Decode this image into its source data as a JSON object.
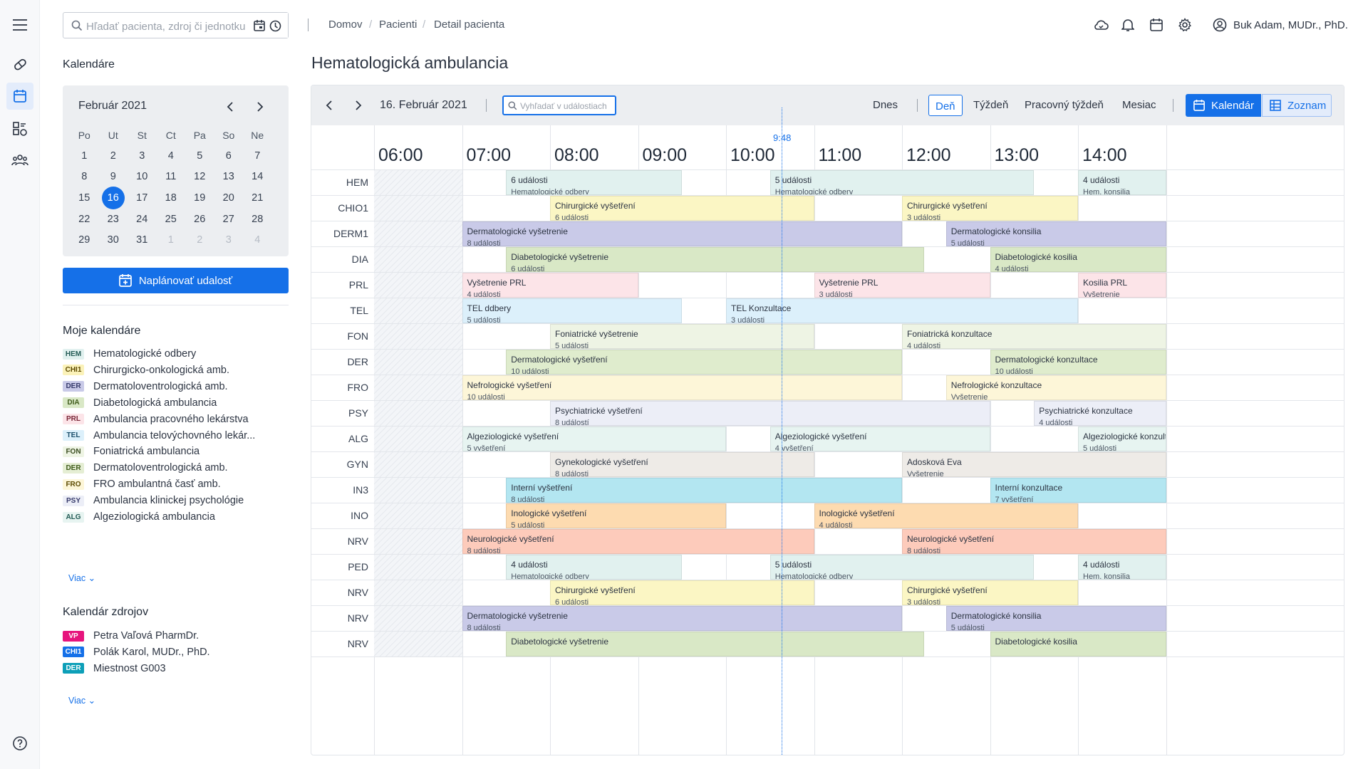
{
  "search": {
    "placeholder": "Hľadať pacienta, zdroj či jednotku"
  },
  "breadcrumb": [
    "Domov",
    "Pacienti",
    "Detail pacienta"
  ],
  "user": {
    "name": "Buk Adam, MUDr., PhD."
  },
  "sidebar": {
    "calendars_heading": "Kalendáre",
    "mini": {
      "month": "Február 2021",
      "dows": [
        "Po",
        "Ut",
        "St",
        "Ct",
        "Pa",
        "So",
        "Ne"
      ],
      "weeks": [
        [
          1,
          2,
          3,
          4,
          5,
          6,
          7
        ],
        [
          8,
          9,
          10,
          11,
          12,
          13,
          14
        ],
        [
          15,
          16,
          17,
          18,
          19,
          20,
          21
        ],
        [
          22,
          23,
          24,
          25,
          26,
          27,
          28
        ],
        [
          29,
          30,
          31,
          1,
          2,
          3,
          4
        ]
      ],
      "selected": 16
    },
    "plan_button": "Naplánovať udalosť",
    "my_heading": "Moje kalendáre",
    "my": [
      {
        "code": "HEM",
        "label": "Hematologické odbery",
        "bg": "#e1f1ef",
        "fg": "#235b55"
      },
      {
        "code": "CHI1",
        "label": "Chirurgicko-onkologická amb.",
        "bg": "#fbf2b9",
        "fg": "#5c4a00"
      },
      {
        "code": "DER",
        "label": "Dermatoloventrologická amb.",
        "bg": "#c9cae8",
        "fg": "#363a6b"
      },
      {
        "code": "DIA",
        "label": "Diabetologická ambulancia",
        "bg": "#d9e8c6",
        "fg": "#3e5a1a"
      },
      {
        "code": "PRL",
        "label": "Ambulancia pracovného lekárstva",
        "bg": "#fce4e8",
        "fg": "#7a2738"
      },
      {
        "code": "TEL",
        "label": "Ambulancia telovýchovného lekár...",
        "bg": "#dcf0fb",
        "fg": "#1c4f6b"
      },
      {
        "code": "FON",
        "label": "Foniatrická ambulancia",
        "bg": "#eef4e4",
        "fg": "#3b4e21"
      },
      {
        "code": "DER",
        "label": "Dermatoloventrologická amb.",
        "bg": "#e5eed4",
        "fg": "#3e5a1a"
      },
      {
        "code": "FRO",
        "label": "FRO ambulantná časť amb.",
        "bg": "#fdf6d8",
        "fg": "#5c4a00"
      },
      {
        "code": "PSY",
        "label": "Ambulancia klinickej psychológie",
        "bg": "#eceef7",
        "fg": "#363a6b"
      },
      {
        "code": "ALG",
        "label": "Algeziologická ambulancia",
        "bg": "#e7f4f1",
        "fg": "#235b55"
      }
    ],
    "more": "Viac",
    "res_heading": "Kalendár zdrojov",
    "res": [
      {
        "code": "VP",
        "label": "Petra Vaľová PharmDr.",
        "bg": "#e6147d",
        "fg": "#ffffff"
      },
      {
        "code": "CHI1",
        "label": "Polák Karol, MUDr., PhD.",
        "bg": "#1570e8",
        "fg": "#ffffff"
      },
      {
        "code": "DER",
        "label": "Miestnost G003",
        "bg": "#0d9fb8",
        "fg": "#ffffff"
      }
    ]
  },
  "main": {
    "title": "Hematologická ambulancia"
  },
  "toolbar": {
    "date": "16. Február 2021",
    "search_placeholder": "Vyhľadať v událostiach",
    "today": "Dnes",
    "views": [
      "Deň",
      "Týždeň",
      "Pracovný týždeň",
      "Mesiac"
    ],
    "active_view": "Deň",
    "cal_btn": "Kalendár",
    "list_btn": "Zoznam"
  },
  "hours": [
    "06:00",
    "07:00",
    "08:00",
    "09:00",
    "10:00",
    "11:00",
    "12:00",
    "13:00",
    "14:00"
  ],
  "now": "9:48",
  "rows": [
    {
      "label": "HEM",
      "bg": "#e1f1ef",
      "events": [
        {
          "s": 7.5,
          "e": 9.5,
          "t": "6 události",
          "sub": "Hematologické odbery"
        },
        {
          "s": 10.5,
          "e": 13.5,
          "t": "5 události",
          "sub": "Hematologické odbery"
        },
        {
          "s": 14.0,
          "e": 15.0,
          "t": "4 události",
          "sub": "Hem. konsilia"
        }
      ]
    },
    {
      "label": "CHIO1",
      "bg": "#fbf6c4",
      "events": [
        {
          "s": 8.0,
          "e": 11.0,
          "t": "Chirurgické vyšetření",
          "sub": "6 události"
        },
        {
          "s": 12.0,
          "e": 14.0,
          "t": "Chirurgické vyšetření",
          "sub": "3 události"
        }
      ]
    },
    {
      "label": "DERM1",
      "bg": "#c9cae8",
      "events": [
        {
          "s": 7.0,
          "e": 12.0,
          "t": "Dermatologické vyšetrenie",
          "sub": "8 události"
        },
        {
          "s": 12.5,
          "e": 15.0,
          "t": "Dermatologické konsilia",
          "sub": "5 události"
        }
      ]
    },
    {
      "label": "DIA",
      "bg": "#d9e8c6",
      "events": [
        {
          "s": 7.5,
          "e": 12.25,
          "t": "Diabetologické vyšetrenie",
          "sub": "6 události"
        },
        {
          "s": 13.0,
          "e": 15.0,
          "t": "Diabetologické kosilia",
          "sub": "4 události"
        }
      ]
    },
    {
      "label": "PRL",
      "bg": "#fce4e8",
      "events": [
        {
          "s": 7.0,
          "e": 9.0,
          "t": "Vyšetrenie PRL",
          "sub": "4 události"
        },
        {
          "s": 11.0,
          "e": 13.0,
          "t": "Vyšetrenie PRL",
          "sub": "3 události"
        },
        {
          "s": 14.0,
          "e": 15.0,
          "t": "Kosilia PRL",
          "sub": "Vyšetrenie"
        }
      ]
    },
    {
      "label": "TEL",
      "bg": "#dcf0fb",
      "events": [
        {
          "s": 7.0,
          "e": 9.5,
          "t": "TEL ddbery",
          "sub": "5 události"
        },
        {
          "s": 10.0,
          "e": 14.0,
          "t": "TEL Konzultace",
          "sub": "3 události"
        }
      ]
    },
    {
      "label": "FON",
      "bg": "#eef4e4",
      "events": [
        {
          "s": 8.0,
          "e": 11.0,
          "t": "Foniatrické vyšetrenie",
          "sub": "5 události"
        },
        {
          "s": 12.0,
          "e": 15.0,
          "t": "Foniatrická konzultace",
          "sub": "4 události"
        }
      ]
    },
    {
      "label": "DER",
      "bg": "#dfeccd",
      "events": [
        {
          "s": 7.5,
          "e": 12.0,
          "t": "Dermatologické vyšetření",
          "sub": "10 události"
        },
        {
          "s": 13.0,
          "e": 15.0,
          "t": "Dermatologické konzultace",
          "sub": "10 události"
        }
      ]
    },
    {
      "label": "FRO",
      "bg": "#fdf6d8",
      "events": [
        {
          "s": 7.0,
          "e": 12.0,
          "t": "Nefrologické vyšetření",
          "sub": "10 události"
        },
        {
          "s": 12.5,
          "e": 15.0,
          "t": "Nefrologické konzultace",
          "sub": "Vyšetrenie"
        }
      ]
    },
    {
      "label": "PSY",
      "bg": "#eceef7",
      "events": [
        {
          "s": 8.0,
          "e": 13.0,
          "t": "Psychiatrické vyšetření",
          "sub": "8 událostí"
        },
        {
          "s": 13.5,
          "e": 15.0,
          "t": "Psychiatrické konzultace",
          "sub": "4 události"
        }
      ]
    },
    {
      "label": "ALG",
      "bg": "#e7f4f1",
      "events": [
        {
          "s": 7.0,
          "e": 10.0,
          "t": "Algeziologické vyšetření",
          "sub": "5 vyšetření"
        },
        {
          "s": 10.5,
          "e": 13.0,
          "t": "Algeziologické vyšetření",
          "sub": "4 vyšetření"
        },
        {
          "s": 14.0,
          "e": 15.0,
          "t": "Algeziologické konzultac",
          "sub": "5 události"
        }
      ]
    },
    {
      "label": "GYN",
      "bg": "#eeebe7",
      "events": [
        {
          "s": 8.0,
          "e": 11.0,
          "t": "Gynekologické vyšetření",
          "sub": "8 události"
        },
        {
          "s": 12.0,
          "e": 15.0,
          "t": "Adosková Eva",
          "sub": "Vyšetrenie"
        }
      ]
    },
    {
      "label": "IN3",
      "bg": "#b3e6f1",
      "events": [
        {
          "s": 7.5,
          "e": 12.0,
          "t": "Interní vyšetření",
          "sub": "8 události"
        },
        {
          "s": 13.0,
          "e": 15.0,
          "t": "Interní konzultace",
          "sub": "7 vyšetření"
        }
      ]
    },
    {
      "label": "INO",
      "bg": "#fddbb0",
      "events": [
        {
          "s": 7.5,
          "e": 10.0,
          "t": "Inologické vyšetření",
          "sub": "5 události"
        },
        {
          "s": 11.0,
          "e": 14.0,
          "t": "Inologické vyšetření",
          "sub": "4 události"
        }
      ]
    },
    {
      "label": "NRV",
      "bg": "#fdcbbb",
      "events": [
        {
          "s": 7.0,
          "e": 11.0,
          "t": "Neurologické vyšetření",
          "sub": "8 události"
        },
        {
          "s": 12.0,
          "e": 15.0,
          "t": "Neurologické vyšetření",
          "sub": "8 události"
        }
      ]
    },
    {
      "label": "PED",
      "bg": "#e1f1ef",
      "events": [
        {
          "s": 7.5,
          "e": 9.5,
          "t": "4 události",
          "sub": "Hematologické odbery"
        },
        {
          "s": 10.5,
          "e": 13.5,
          "t": "5 události",
          "sub": "Hematologické odbery"
        },
        {
          "s": 14.0,
          "e": 15.0,
          "t": "4 události",
          "sub": "Hem. konsilia"
        }
      ]
    },
    {
      "label": "NRV",
      "bg": "#fbf6c4",
      "events": [
        {
          "s": 8.0,
          "e": 11.0,
          "t": "Chirurgické vyšetření",
          "sub": "6 události"
        },
        {
          "s": 12.0,
          "e": 14.0,
          "t": "Chirurgické vyšetření",
          "sub": "3 události"
        }
      ]
    },
    {
      "label": "NRV",
      "bg": "#c9cae8",
      "events": [
        {
          "s": 7.0,
          "e": 12.0,
          "t": "Dermatologické vyšetrenie",
          "sub": "8 události"
        },
        {
          "s": 12.5,
          "e": 15.0,
          "t": "Dermatologické konsilia",
          "sub": "5 události"
        }
      ]
    },
    {
      "label": "NRV",
      "bg": "#d9e8c6",
      "events": [
        {
          "s": 7.5,
          "e": 12.25,
          "t": "Diabetologické vyšetrenie",
          "sub": ""
        },
        {
          "s": 13.0,
          "e": 15.0,
          "t": "Diabetologické kosilia",
          "sub": ""
        }
      ]
    }
  ],
  "colors": {
    "accent": "#1570e8"
  }
}
